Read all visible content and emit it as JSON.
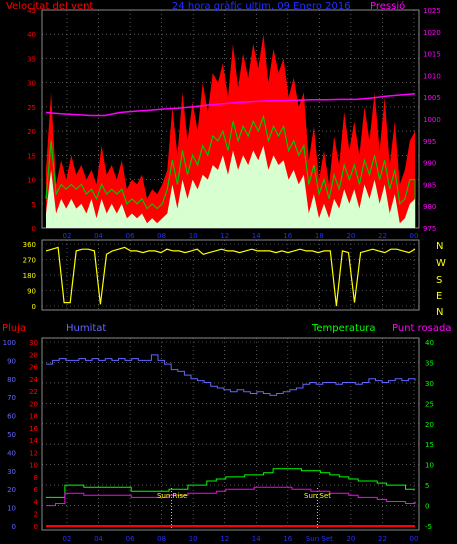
{
  "colors": {
    "wind": "#ff0000",
    "wind_avg": "#00c800",
    "wind_min": "#d8ffd0",
    "pressure": "#ff00ff",
    "direction": "#ffff00",
    "humidity": "#6464ff",
    "temperature": "#00ff00",
    "dewpoint": "#ff00ff",
    "rain": "#ff0000",
    "axis_left_1": "#ff0000",
    "axis_right_1": "#ff00ff",
    "axis_left_2_rain": "#ff0000",
    "axis_left_2_hum": "#6464ff",
    "axis_right_2": "#00ff00"
  },
  "chart_data": [
    {
      "type": "line",
      "title": "24 hora gràfic ultim, 09 Enero 2016",
      "left_label": "Velocitat del vent",
      "right_label": "Pressió",
      "x_ticks": [
        "02",
        "04",
        "06",
        "08",
        "10",
        "12",
        "14",
        "16",
        "18",
        "20",
        "22",
        "00"
      ],
      "y_left_ticks": [
        0,
        5,
        10,
        15,
        20,
        25,
        30,
        35,
        40,
        45
      ],
      "y_left_lim": [
        0,
        45
      ],
      "y_right_ticks": [
        975,
        980,
        985,
        990,
        995,
        1000,
        1005,
        1010,
        1015,
        1020,
        1025
      ],
      "y_right_lim": [
        975,
        1025
      ],
      "grid": true,
      "series": [
        {
          "name": "Velocitat del vent",
          "axis": "left",
          "values": [
            12,
            28,
            9,
            14,
            10,
            15,
            11,
            13,
            10,
            12,
            9,
            17,
            11,
            13,
            10,
            14,
            8,
            10,
            9,
            11,
            6,
            8,
            7,
            9,
            12,
            25,
            15,
            28,
            18,
            26,
            20,
            30,
            24,
            32,
            30,
            34,
            27,
            38,
            29,
            36,
            31,
            38,
            33,
            40,
            30,
            37,
            32,
            35,
            27,
            31,
            25,
            28,
            14,
            21,
            10,
            16,
            9,
            19,
            13,
            24,
            16,
            22,
            15,
            25,
            18,
            28,
            16,
            27,
            13,
            22,
            9,
            12,
            18,
            20
          ]
        },
        {
          "name": "Mitjana",
          "axis": "left",
          "values": [
            6,
            18,
            7,
            9,
            8,
            9,
            8,
            9,
            7,
            8,
            6,
            9,
            7,
            8,
            7,
            8,
            5,
            6,
            5,
            6,
            4,
            5,
            4,
            5,
            8,
            14,
            9,
            16,
            11,
            15,
            13,
            17,
            15,
            19,
            18,
            20,
            16,
            22,
            18,
            21,
            19,
            22,
            20,
            23,
            18,
            21,
            19,
            21,
            16,
            18,
            15,
            17,
            9,
            13,
            7,
            10,
            6,
            11,
            8,
            13,
            10,
            13,
            9,
            14,
            11,
            15,
            10,
            14,
            8,
            12,
            5,
            6,
            10,
            10
          ]
        },
        {
          "name": "Minim",
          "axis": "left",
          "values": [
            3,
            12,
            3,
            6,
            4,
            6,
            4,
            5,
            3,
            6,
            2,
            6,
            3,
            5,
            3,
            5,
            2,
            3,
            2,
            3,
            1,
            2,
            1,
            2,
            3,
            9,
            4,
            10,
            6,
            10,
            8,
            11,
            10,
            13,
            12,
            15,
            11,
            16,
            12,
            15,
            13,
            16,
            14,
            17,
            12,
            15,
            13,
            14,
            10,
            12,
            9,
            11,
            3,
            7,
            2,
            5,
            2,
            6,
            4,
            8,
            5,
            8,
            4,
            9,
            6,
            10,
            5,
            9,
            3,
            7,
            1,
            2,
            5,
            6
          ]
        },
        {
          "name": "Pressió",
          "axis": "right",
          "values": [
            1001.5,
            1001.2,
            1001,
            1000.8,
            1000.8,
            1001.5,
            1001.8,
            1002,
            1002.3,
            1002.5,
            1002.8,
            1003.2,
            1003.5,
            1003.8,
            1004,
            1004.2,
            1004.2,
            1004.3,
            1004.4,
            1004.4,
            1004.5,
            1004.5,
            1004.8,
            1005.2,
            1005.5,
            1005.8
          ]
        }
      ]
    },
    {
      "type": "line",
      "right_labels": [
        "N",
        "W",
        "S",
        "E",
        "N"
      ],
      "x_ticks": [],
      "y_left_ticks": [
        0,
        90,
        180,
        270,
        360
      ],
      "y_lim": [
        0,
        360
      ],
      "grid": true,
      "series": [
        {
          "name": "Direcció",
          "values": [
            320,
            330,
            340,
            20,
            20,
            320,
            330,
            330,
            320,
            10,
            300,
            320,
            330,
            340,
            320,
            320,
            310,
            320,
            320,
            310,
            330,
            320,
            320,
            310,
            320,
            330,
            300,
            310,
            320,
            330,
            320,
            320,
            310,
            320,
            330,
            320,
            320,
            320,
            310,
            320,
            310,
            320,
            330,
            320,
            320,
            310,
            320,
            320,
            0,
            320,
            310,
            20,
            310,
            320,
            330,
            320,
            310,
            330,
            330,
            320,
            310,
            330
          ]
        }
      ]
    },
    {
      "type": "line",
      "left_labels": [
        "Pluja",
        "Humitat"
      ],
      "right_labels": [
        "Temperatura",
        "Punt rosada"
      ],
      "annotations": [
        "Sun Rise",
        "Sun Set"
      ],
      "x_ticks": [
        "02",
        "04",
        "06",
        "08",
        "10",
        "12",
        "14",
        "16",
        "Sun Set",
        "20",
        "22",
        "00"
      ],
      "y_left_ticks_rain": [
        0,
        2,
        4,
        6,
        8,
        10,
        12,
        14,
        16,
        18,
        20,
        22,
        24,
        26,
        28,
        30
      ],
      "y_left_ticks_hum": [
        0,
        10,
        20,
        30,
        40,
        50,
        60,
        70,
        80,
        90,
        100
      ],
      "y_right_ticks": [
        -5,
        0,
        5,
        10,
        15,
        20,
        25,
        30,
        35,
        40
      ],
      "y_right_lim": [
        -5,
        40
      ],
      "grid": true,
      "series": [
        {
          "name": "Humitat",
          "axis": "hum",
          "values": [
            88,
            90,
            91,
            90,
            90,
            91,
            90,
            91,
            90,
            91,
            90,
            91,
            90,
            91,
            90,
            90,
            93,
            90,
            88,
            85,
            84,
            82,
            80,
            79,
            78,
            76,
            75,
            74,
            73,
            74,
            73,
            72,
            73,
            72,
            71,
            72,
            73,
            74,
            75,
            77,
            78,
            77,
            78,
            78,
            77,
            78,
            78,
            77,
            78,
            80,
            79,
            78,
            79,
            80,
            79,
            80,
            79
          ]
        },
        {
          "name": "Temperatura",
          "axis": "right",
          "values": [
            2,
            2,
            5,
            5,
            4.5,
            4.5,
            4.5,
            4.5,
            4.5,
            3.5,
            3.5,
            3.5,
            3.5,
            4,
            4,
            5,
            5,
            6,
            6.5,
            7,
            7,
            7.5,
            7.5,
            8,
            9,
            9,
            9,
            8.5,
            8.5,
            8,
            7.5,
            7,
            6.5,
            6,
            6,
            5.5,
            5,
            5,
            4,
            4
          ]
        },
        {
          "name": "Punt rosada",
          "axis": "right",
          "values": [
            0,
            0.5,
            3,
            3,
            2.5,
            2.5,
            2.5,
            2.5,
            2.5,
            2,
            2,
            2,
            2,
            2.5,
            2.5,
            3,
            3,
            3,
            3.5,
            4,
            4,
            4,
            4.5,
            4.5,
            4.5,
            4.5,
            4,
            4,
            3.5,
            3.5,
            3,
            3,
            2.5,
            2,
            2,
            1.5,
            1,
            1,
            0.5,
            1
          ]
        },
        {
          "name": "Pluja",
          "axis": "rain",
          "values": [
            0,
            0,
            0,
            0,
            0,
            0,
            0,
            0,
            0,
            0,
            0,
            0
          ]
        }
      ]
    }
  ]
}
